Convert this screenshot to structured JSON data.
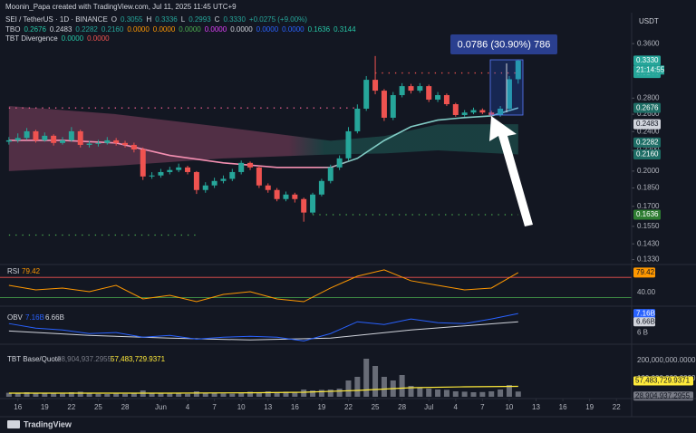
{
  "header": {
    "watermark": "Moonin_Papa created with TradingView.com, Jul 11, 2025 11:45 UTC+9",
    "symbol": "SEI / TetherUS · 1D · BINANCE",
    "ohlc": [
      [
        "O",
        "0.3055"
      ],
      [
        "H",
        "0.3336"
      ],
      [
        "L",
        "0.2993"
      ],
      [
        "C",
        "0.3330"
      ]
    ],
    "change": "+0.0275 (+9.00%)",
    "tbo": {
      "name": "TBO",
      "values": [
        "0.2676",
        "0.2483",
        "0.2282",
        "0.2160",
        "0.0000",
        "0.0000",
        "0.0000",
        "0.0000",
        "0.0000",
        "0.0000",
        "0.0000",
        "0.1636",
        "0.3144"
      ],
      "colors": [
        "#26c6a6",
        "#d1d4dc",
        "#26a69a",
        "#26a69a",
        "#ff9800",
        "#ff9800",
        "#4caf50",
        "#e040fb",
        "#d1d4dc",
        "#2962ff",
        "#2962ff",
        "#26c6a6",
        "#26c6a6"
      ]
    },
    "divergence": {
      "name": "TBT Divergence",
      "values": [
        "0.0000",
        "0.0000"
      ],
      "colors": [
        "#26c6a6",
        "#ef5350"
      ]
    },
    "currency": "USDT",
    "logo": "TradingView"
  },
  "measure": {
    "label": "0.0786 (30.90%) 786"
  },
  "chart_data": {
    "type": "candlestick",
    "log_scale": true,
    "xlim": [
      0,
      70.7
    ],
    "xticks": [
      {
        "value": 2,
        "label": "16"
      },
      {
        "value": 5,
        "label": "19"
      },
      {
        "value": 8,
        "label": "22"
      },
      {
        "value": 11,
        "label": "25"
      },
      {
        "value": 14,
        "label": "28"
      },
      {
        "value": 18,
        "label": "Jun"
      },
      {
        "value": 21,
        "label": "4"
      },
      {
        "value": 24,
        "label": "7"
      },
      {
        "value": 27,
        "label": "10"
      },
      {
        "value": 30,
        "label": "13"
      },
      {
        "value": 33,
        "label": "16"
      },
      {
        "value": 36,
        "label": "19"
      },
      {
        "value": 39,
        "label": "22"
      },
      {
        "value": 42,
        "label": "25"
      },
      {
        "value": 45,
        "label": "28"
      },
      {
        "value": 48,
        "label": "Jul"
      },
      {
        "value": 51,
        "label": "4"
      },
      {
        "value": 54,
        "label": "7"
      },
      {
        "value": 57,
        "label": "10"
      },
      {
        "value": 60,
        "label": "13"
      },
      {
        "value": 63,
        "label": "16"
      },
      {
        "value": 66,
        "label": "19"
      },
      {
        "value": 69,
        "label": "22"
      }
    ],
    "ylim": [
      0.13,
      0.39
    ],
    "yticks": [
      {
        "value": 0.36,
        "label": "0.3600"
      },
      {
        "value": 0.28,
        "label": "0.2800"
      },
      {
        "value": 0.26,
        "label": "0.2600"
      },
      {
        "value": 0.24,
        "label": "0.2400"
      },
      {
        "value": 0.22,
        "label": "0.2200"
      },
      {
        "value": 0.2,
        "label": "0.2000"
      },
      {
        "value": 0.185,
        "label": "0.1850"
      },
      {
        "value": 0.17,
        "label": "0.1700"
      },
      {
        "value": 0.155,
        "label": "0.1550"
      },
      {
        "value": 0.143,
        "label": "0.1430"
      },
      {
        "value": 0.133,
        "label": "0.1330"
      }
    ],
    "up_color": "#26a69a",
    "down_color": "#ef5350",
    "x": [
      1,
      2,
      3,
      4,
      5,
      6,
      7,
      8,
      9,
      10,
      11,
      12,
      13,
      14,
      15,
      16,
      17,
      18,
      19,
      20,
      21,
      22,
      23,
      24,
      25,
      26,
      27,
      28,
      29,
      30,
      31,
      32,
      33,
      34,
      35,
      36,
      37,
      38,
      39,
      40,
      41,
      42,
      43,
      44,
      45,
      46,
      47,
      48,
      49,
      50,
      51,
      52,
      53,
      54,
      55,
      56,
      57,
      58
    ],
    "open": [
      0.229,
      0.2305,
      0.233,
      0.2403,
      0.2305,
      0.2354,
      0.2277,
      0.2305,
      0.2403,
      0.2257,
      0.227,
      0.2277,
      0.2305,
      0.2277,
      0.2257,
      0.221,
      0.1951,
      0.196,
      0.1991,
      0.201,
      0.2034,
      0.1991,
      0.1833,
      0.1872,
      0.1911,
      0.193,
      0.1991,
      0.2077,
      0.2034,
      0.1872,
      0.1833,
      0.1758,
      0.1795,
      0.1758,
      0.1652,
      0.1795,
      0.1911,
      0.2034,
      0.2121,
      0.2403,
      0.2667,
      0.3047,
      0.2898,
      0.2558,
      0.2839,
      0.2959,
      0.2898,
      0.2959,
      0.2781,
      0.2839,
      0.2723,
      0.259,
      0.262,
      0.265,
      0.262,
      0.259,
      0.2667,
      0.3055
    ],
    "high": [
      0.234,
      0.238,
      0.244,
      0.242,
      0.239,
      0.237,
      0.234,
      0.245,
      0.242,
      0.23,
      0.231,
      0.234,
      0.233,
      0.23,
      0.228,
      0.223,
      0.199,
      0.202,
      0.204,
      0.207,
      0.205,
      0.2,
      0.19,
      0.194,
      0.196,
      0.202,
      0.21,
      0.209,
      0.205,
      0.189,
      0.185,
      0.182,
      0.181,
      0.177,
      0.181,
      0.193,
      0.206,
      0.215,
      0.245,
      0.272,
      0.31,
      0.34,
      0.292,
      0.288,
      0.3,
      0.299,
      0.3,
      0.298,
      0.288,
      0.286,
      0.274,
      0.265,
      0.268,
      0.267,
      0.264,
      0.27,
      0.31,
      0.3336
    ],
    "low": [
      0.226,
      0.228,
      0.231,
      0.228,
      0.229,
      0.225,
      0.226,
      0.229,
      0.223,
      0.223,
      0.224,
      0.226,
      0.225,
      0.223,
      0.218,
      0.192,
      0.193,
      0.194,
      0.197,
      0.199,
      0.197,
      0.18,
      0.181,
      0.185,
      0.189,
      0.191,
      0.197,
      0.201,
      0.185,
      0.181,
      0.174,
      0.174,
      0.173,
      0.1584,
      0.164,
      0.178,
      0.189,
      0.201,
      0.21,
      0.238,
      0.264,
      0.285,
      0.252,
      0.253,
      0.281,
      0.286,
      0.287,
      0.275,
      0.275,
      0.27,
      0.257,
      0.257,
      0.26,
      0.26,
      0.256,
      0.257,
      0.264,
      0.2993
    ],
    "close": [
      0.2305,
      0.233,
      0.2403,
      0.2305,
      0.2354,
      0.2277,
      0.2305,
      0.2403,
      0.2257,
      0.227,
      0.2277,
      0.2305,
      0.2277,
      0.2257,
      0.221,
      0.1951,
      0.196,
      0.1991,
      0.201,
      0.2034,
      0.1991,
      0.1833,
      0.1872,
      0.1911,
      0.193,
      0.1991,
      0.2077,
      0.2034,
      0.1872,
      0.1833,
      0.1758,
      0.1795,
      0.1758,
      0.1652,
      0.1795,
      0.1911,
      0.2034,
      0.2121,
      0.2403,
      0.2667,
      0.3047,
      0.2898,
      0.2558,
      0.2839,
      0.2959,
      0.2898,
      0.2959,
      0.2781,
      0.2839,
      0.2723,
      0.259,
      0.262,
      0.265,
      0.262,
      0.259,
      0.2667,
      0.3055,
      0.333
    ],
    "tbo_line": {
      "x": [
        1,
        7,
        13,
        19,
        25,
        31,
        37,
        40,
        43,
        46,
        49,
        52,
        55,
        58
      ],
      "values": [
        0.2305,
        0.2305,
        0.2277,
        0.215,
        0.2077,
        0.2034,
        0.2034,
        0.2121,
        0.2303,
        0.2454,
        0.253,
        0.256,
        0.258,
        0.2676
      ],
      "colors": [
        "#f48fb1",
        "#80cbc4"
      ]
    },
    "cloud": {
      "x": [
        1,
        13,
        25,
        37,
        43,
        49,
        58
      ],
      "upper": [
        0.27,
        0.26,
        0.245,
        0.23,
        0.235,
        0.248,
        0.2483
      ],
      "lower": [
        0.2,
        0.205,
        0.212,
        0.216,
        0.217,
        0.22,
        0.216
      ],
      "colors": [
        "#7a3f5c",
        "#1f5a55"
      ]
    },
    "levels": [
      {
        "value": 0.2676,
        "from": 1,
        "to": 40,
        "color": "#f06292"
      },
      {
        "value": 0.3144,
        "from": 42,
        "to": 58,
        "color": "#ef5350"
      },
      {
        "value": 0.1636,
        "from": 35,
        "to": 58,
        "color": "#4caf50"
      },
      {
        "value": 0.1489,
        "from": 1,
        "to": 22,
        "color": "#4caf50"
      }
    ],
    "price_badges": [
      {
        "value": 0.333,
        "label": "0.3330",
        "color": "#26a69a"
      },
      {
        "value": 0.3144,
        "label": "0.3144",
        "color": "#26a69a"
      },
      {
        "value": 0.2676,
        "label": "0.2676",
        "color": "#1e6e66"
      },
      {
        "value": 0.2483,
        "label": "0.2483",
        "color": "#d1d4dc"
      },
      {
        "value": 0.2282,
        "label": "0.2282",
        "color": "#1e6e66"
      },
      {
        "value": 0.216,
        "label": "0.2160",
        "color": "#1e6e66"
      },
      {
        "value": 0.1636,
        "label": "0.1636",
        "color": "#2e7d32"
      }
    ],
    "countdown": "21:14:55",
    "rsi": {
      "title": "RSI",
      "value_label": "79.42",
      "color": "#ff9800",
      "ylim": [
        15,
        90
      ],
      "x": [
        1,
        4,
        7,
        10,
        13,
        16,
        19,
        22,
        25,
        28,
        31,
        34,
        37,
        40,
        43,
        46,
        49,
        52,
        55,
        58
      ],
      "values": [
        54.3,
        45.4,
        49,
        41.8,
        54.3,
        27.5,
        34.6,
        22.1,
        36.4,
        41.8,
        27.5,
        22.1,
        49,
        72.3,
        84.8,
        63.3,
        54.3,
        45.4,
        49,
        79.42
      ],
      "yticks": [
        {
          "value": 40,
          "label": "40.00"
        }
      ],
      "levels": [
        {
          "value": 70,
          "color": "#ef5350"
        },
        {
          "value": 30,
          "color": "#4caf50"
        }
      ]
    },
    "obv": {
      "title": "OBV",
      "labels": [
        "7.16B",
        "6.66B"
      ],
      "ylim": [
        5.4,
        7.5
      ],
      "colors": [
        "#2962ff",
        "#d1d4dc"
      ],
      "yticks": [
        {
          "value": 6,
          "label": "6 B"
        }
      ],
      "x": [
        1,
        4,
        7,
        10,
        13,
        16,
        19,
        22,
        25,
        28,
        31,
        34,
        37,
        40,
        43,
        46,
        49,
        52,
        55,
        58
      ],
      "values": [
        6.55,
        6.27,
        6.16,
        5.94,
        6.0,
        5.72,
        5.83,
        5.6,
        5.72,
        5.77,
        5.72,
        5.49,
        5.94,
        6.66,
        6.49,
        6.83,
        6.6,
        6.55,
        6.83,
        7.16
      ],
      "ma_x": [
        1,
        10,
        19,
        28,
        37,
        46,
        58
      ],
      "ma_values": [
        6.1,
        5.83,
        5.66,
        5.55,
        5.66,
        6.16,
        6.66
      ]
    },
    "volume": {
      "title": "TBT Base/Quote",
      "labels": [
        "28,904,937.2955",
        "57,483,729.9371"
      ],
      "ylim": [
        0,
        275000000
      ],
      "colors": [
        "#787b86",
        "#ffeb3b"
      ],
      "yticks": [
        {
          "value": 200000000,
          "label": "200,000,000.0000"
        },
        {
          "value": 100000000,
          "label": "100,000,000.0000"
        }
      ],
      "values": [
        22000000,
        18000000,
        25000000,
        20000000,
        18000000,
        20000000,
        17000000,
        25000000,
        28000000,
        18000000,
        16000000,
        15000000,
        17000000,
        16000000,
        18000000,
        35000000,
        20000000,
        18000000,
        17000000,
        18000000,
        16000000,
        30000000,
        22000000,
        20000000,
        18000000,
        17000000,
        20000000,
        28000000,
        22000000,
        30000000,
        25000000,
        28000000,
        22000000,
        40000000,
        35000000,
        38000000,
        40000000,
        45000000,
        90000000,
        110000000,
        210000000,
        170000000,
        110000000,
        90000000,
        120000000,
        60000000,
        50000000,
        45000000,
        40000000,
        38000000,
        30000000,
        28000000,
        25000000,
        26000000,
        30000000,
        40000000,
        65000000,
        28904937.2955
      ],
      "ma_x": [
        1,
        10,
        19,
        28,
        34,
        40,
        46,
        52,
        58
      ],
      "ma_values": [
        20000000,
        20000000,
        20000000,
        22000000,
        25000000,
        35000000,
        50000000,
        55000000,
        57483729.9371
      ]
    }
  }
}
